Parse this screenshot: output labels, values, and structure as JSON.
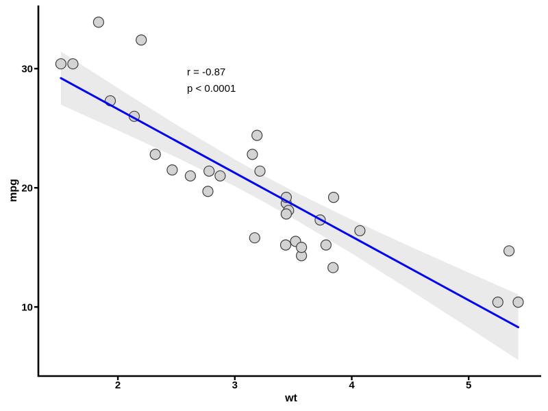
{
  "chart_data": {
    "type": "scatter",
    "title": "",
    "xlabel": "wt",
    "ylabel": "mpg",
    "x_ticks": [
      2,
      3,
      4,
      5
    ],
    "y_ticks": [
      10,
      20,
      30
    ],
    "xlim": [
      1.32,
      5.62
    ],
    "ylim": [
      4.2,
      35.3
    ],
    "grid": false,
    "legend": "none",
    "annotation": {
      "line1": "r = -0.87",
      "line2": "p < 0.0001"
    },
    "points": [
      [
        2.62,
        21.0
      ],
      [
        2.875,
        21.0
      ],
      [
        2.32,
        22.8
      ],
      [
        3.215,
        21.4
      ],
      [
        3.44,
        18.7
      ],
      [
        3.46,
        18.1
      ],
      [
        3.57,
        14.3
      ],
      [
        3.19,
        24.4
      ],
      [
        3.15,
        22.8
      ],
      [
        3.44,
        19.2
      ],
      [
        3.44,
        17.8
      ],
      [
        4.07,
        16.4
      ],
      [
        3.73,
        17.3
      ],
      [
        3.78,
        15.2
      ],
      [
        5.25,
        10.4
      ],
      [
        5.424,
        10.4
      ],
      [
        5.345,
        14.7
      ],
      [
        2.2,
        32.4
      ],
      [
        1.615,
        30.4
      ],
      [
        1.835,
        33.9
      ],
      [
        2.465,
        21.5
      ],
      [
        3.52,
        15.5
      ],
      [
        3.435,
        15.2
      ],
      [
        3.84,
        13.3
      ],
      [
        3.845,
        19.2
      ],
      [
        1.935,
        27.3
      ],
      [
        2.14,
        26.0
      ],
      [
        1.513,
        30.4
      ],
      [
        3.17,
        15.8
      ],
      [
        2.77,
        19.7
      ],
      [
        3.57,
        15.0
      ],
      [
        2.78,
        21.4
      ]
    ],
    "regression": {
      "slope": -5.3445,
      "intercept": 37.285,
      "x_start": 1.513,
      "x_end": 5.424
    },
    "confidence_band": [
      {
        "wt": 1.513,
        "lower": 26.97,
        "upper": 31.44
      },
      {
        "wt": 2.0,
        "lower": 24.82,
        "upper": 28.37
      },
      {
        "wt": 2.5,
        "lower": 22.56,
        "upper": 25.3
      },
      {
        "wt": 3.0,
        "lower": 20.13,
        "upper": 22.38
      },
      {
        "wt": 3.217,
        "lower": 18.99,
        "upper": 21.19
      },
      {
        "wt": 3.5,
        "lower": 17.43,
        "upper": 19.72
      },
      {
        "wt": 4.0,
        "lower": 14.49,
        "upper": 17.32
      },
      {
        "wt": 4.5,
        "lower": 11.41,
        "upper": 15.07
      },
      {
        "wt": 5.0,
        "lower": 8.25,
        "upper": 12.88
      },
      {
        "wt": 5.424,
        "lower": 5.55,
        "upper": 11.05
      }
    ],
    "colors": {
      "point_fill": "#D3D3D3",
      "point_stroke": "#3F3F3F",
      "regression_line": "#0000FF",
      "confidence_band": "#EAEAEA",
      "axis": "#000000",
      "text": "#000000",
      "background": "#FFFFFF"
    }
  }
}
